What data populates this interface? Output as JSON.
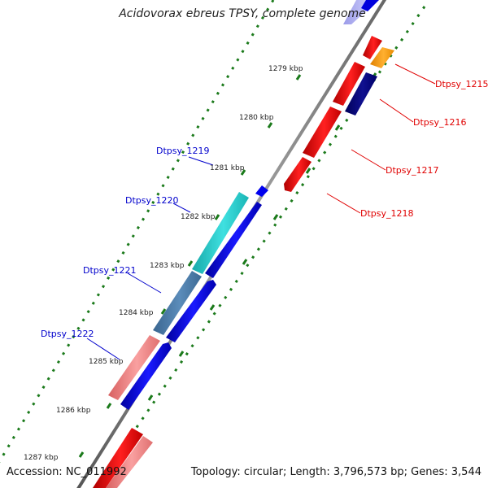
{
  "genome_title": "Acidovorax ebreus TPSY, complete genome",
  "footer": {
    "accession": "Accession: NC_011992",
    "topology": "Topology: circular; Length: 3,796,573 bp; Genes: 3,544"
  },
  "ticks": [
    "1279 kbp",
    "1280 kbp",
    "1281 kbp",
    "1282 kbp",
    "1283 kbp",
    "1284 kbp",
    "1285 kbp",
    "1286 kbp",
    "1287 kbp"
  ],
  "genes": {
    "dtpsy_1215": "Dtpsy_1215",
    "dtpsy_1216": "Dtpsy_1216",
    "dtpsy_1217": "Dtpsy_1217",
    "dtpsy_1218": "Dtpsy_1218",
    "dtpsy_1219": "Dtpsy_1219",
    "dtpsy_1220": "Dtpsy_1220",
    "dtpsy_1221": "Dtpsy_1221",
    "dtpsy_1222": "Dtpsy_1222"
  },
  "colors": {
    "label_red": "#e00000",
    "label_blue": "#0000cc",
    "red": "#ff0000",
    "orange": "#ff9900",
    "navy": "#000080",
    "blue": "#0000ee",
    "cyan": "#22cccc",
    "steel": "#4a7aa8",
    "pink": "#f07c7c",
    "backbone": "#888888",
    "tick_green": "#1b7a1b"
  }
}
